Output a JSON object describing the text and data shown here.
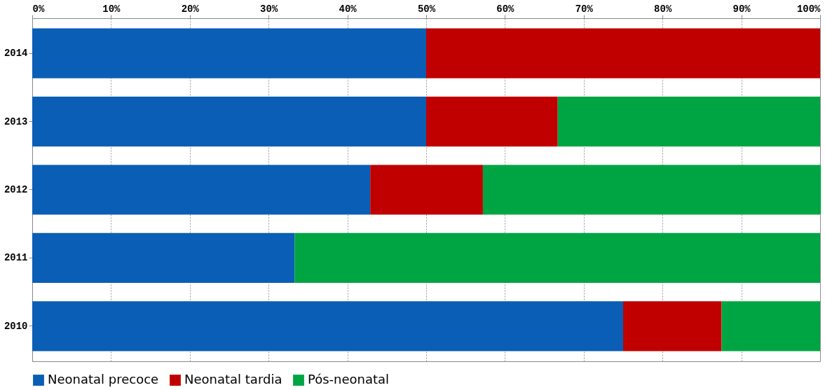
{
  "chart_data": {
    "type": "bar",
    "orientation": "horizontal",
    "stacked": true,
    "categories": [
      "2014",
      "2013",
      "2012",
      "2011",
      "2010"
    ],
    "series": [
      {
        "name": "Neonatal precoce",
        "color": "#0a5eb5",
        "values": [
          50,
          50,
          42.9,
          33.3,
          75
        ]
      },
      {
        "name": "Neonatal tardia",
        "color": "#c00000",
        "values": [
          50,
          16.7,
          14.3,
          0,
          12.5
        ]
      },
      {
        "name": "Pós-neonatal",
        "color": "#00a543",
        "values": [
          0,
          33.3,
          42.9,
          66.7,
          12.5
        ]
      }
    ],
    "xlim": [
      0,
      100
    ],
    "xticks": [
      {
        "value": 0,
        "label": "0%"
      },
      {
        "value": 10,
        "label": "10%"
      },
      {
        "value": 20,
        "label": "20%"
      },
      {
        "value": 30,
        "label": "30%"
      },
      {
        "value": 40,
        "label": "40%"
      },
      {
        "value": 50,
        "label": "50%"
      },
      {
        "value": 60,
        "label": "60%"
      },
      {
        "value": 70,
        "label": "70%"
      },
      {
        "value": 80,
        "label": "80%"
      },
      {
        "value": 90,
        "label": "90%"
      },
      {
        "value": 100,
        "label": "100%"
      }
    ],
    "grid": "x",
    "legend": "bottom"
  }
}
